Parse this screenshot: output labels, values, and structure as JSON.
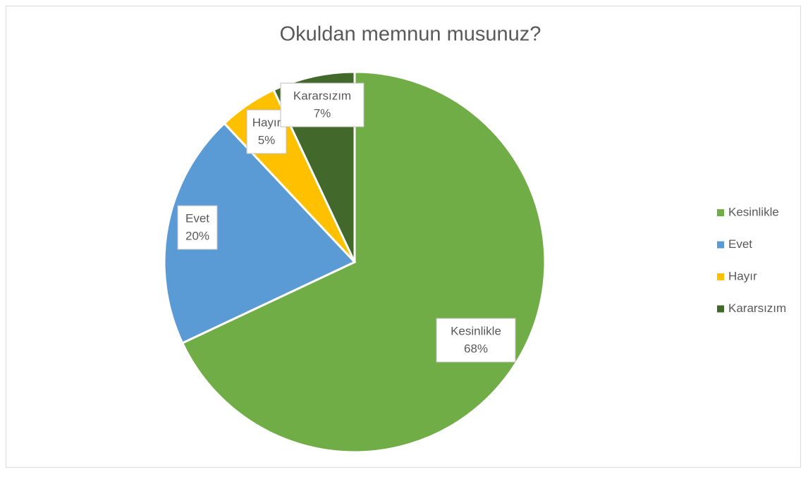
{
  "chart_data": {
    "type": "pie",
    "title": "Okuldan memnun musunuz?",
    "categories": [
      "Kesinlikle",
      "Evet",
      "Hayır",
      "Kararsızım"
    ],
    "values": [
      68,
      20,
      5,
      7
    ],
    "value_labels": [
      "68%",
      "20%",
      "5%",
      "7%"
    ],
    "colors": [
      "#70ad47",
      "#5b9bd5",
      "#ffc000",
      "#43682b"
    ],
    "legend": "right"
  }
}
